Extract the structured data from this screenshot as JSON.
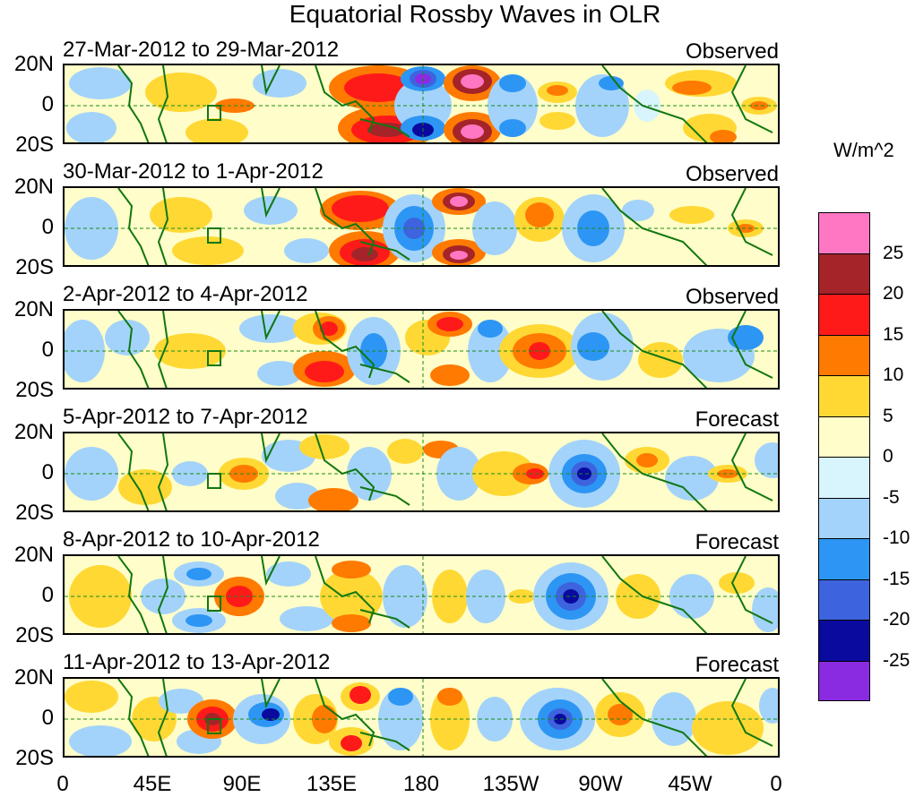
{
  "title": "Equatorial Rossby Waves in OLR",
  "latitude_labels": [
    "20N",
    "0",
    "20S"
  ],
  "longitude_labels": [
    "0",
    "45E",
    "90E",
    "135E",
    "180",
    "135W",
    "90W",
    "45W",
    "0"
  ],
  "panels": [
    {
      "title": "27-Mar-2012 to 29-Mar-2012",
      "kind": "Observed"
    },
    {
      "title": "30-Mar-2012 to 1-Apr-2012",
      "kind": "Observed"
    },
    {
      "title": "2-Apr-2012 to 4-Apr-2012",
      "kind": "Observed"
    },
    {
      "title": "5-Apr-2012 to 7-Apr-2012",
      "kind": "Forecast"
    },
    {
      "title": "8-Apr-2012 to 10-Apr-2012",
      "kind": "Forecast"
    },
    {
      "title": "11-Apr-2012 to 13-Apr-2012",
      "kind": "Forecast"
    }
  ],
  "colorbar": {
    "units": "W/m^2",
    "labels": [
      "25",
      "20",
      "15",
      "10",
      "5",
      "0",
      "-5",
      "-10",
      "-15",
      "-20",
      "-25"
    ],
    "colors": [
      "#ff77c3",
      "#a4242a",
      "#ff1a1a",
      "#ff7a00",
      "#ffd834",
      "#fffdc9",
      "#d8f4fc",
      "#a3d3fa",
      "#2d96f4",
      "#3d64de",
      "#0a0a9e",
      "#8a2be2"
    ]
  }
}
